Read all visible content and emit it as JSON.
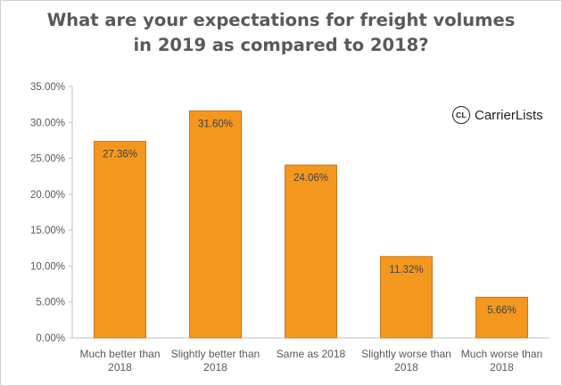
{
  "title_line1": "What are your expectations for freight volumes",
  "title_line2": "in 2019 as compared to 2018?",
  "logo": {
    "mark": "CL",
    "name": "CarrierLists"
  },
  "colors": {
    "bar_fill": "#F4971F",
    "bar_stroke": "#C8781A",
    "axis_text": "#595959",
    "grid": "#d9d9d9"
  },
  "chart_data": {
    "type": "bar",
    "title": "What are your expectations for freight volumes in 2019 as compared to 2018?",
    "categories": [
      [
        "Much better than",
        "2018"
      ],
      [
        "Slightly better than",
        "2018"
      ],
      [
        "Same as 2018"
      ],
      [
        "Slightly worse than",
        "2018"
      ],
      [
        "Much worse than",
        "2018"
      ]
    ],
    "values": [
      27.36,
      31.6,
      24.06,
      11.32,
      5.66
    ],
    "data_labels": [
      "27.36%",
      "31.60%",
      "24.06%",
      "11.32%",
      "5.66%"
    ],
    "ylim": [
      0,
      35
    ],
    "yticks": [
      "0.00%",
      "5.00%",
      "10.00%",
      "15.00%",
      "20.00%",
      "25.00%",
      "30.00%",
      "35.00%"
    ],
    "grid": false,
    "legend": "none"
  }
}
